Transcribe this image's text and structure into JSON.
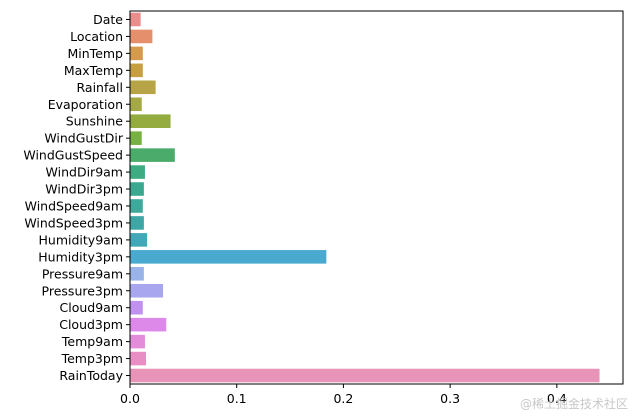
{
  "chart_data": {
    "type": "bar",
    "orientation": "horizontal",
    "categories": [
      "Date",
      "Location",
      "MinTemp",
      "MaxTemp",
      "Rainfall",
      "Evaporation",
      "Sunshine",
      "WindGustDir",
      "WindGustSpeed",
      "WindDir9am",
      "WindDir3pm",
      "WindSpeed9am",
      "WindSpeed3pm",
      "Humidity9am",
      "Humidity3pm",
      "Pressure9am",
      "Pressure3pm",
      "Cloud9am",
      "Cloud3pm",
      "Temp9am",
      "Temp3pm",
      "RainToday"
    ],
    "values": [
      0.01,
      0.021,
      0.012,
      0.012,
      0.024,
      0.011,
      0.038,
      0.011,
      0.042,
      0.014,
      0.013,
      0.012,
      0.013,
      0.016,
      0.184,
      0.013,
      0.031,
      0.012,
      0.034,
      0.014,
      0.015,
      0.44
    ],
    "colors": [
      "#ea8d8d",
      "#e58f6d",
      "#d69a4f",
      "#c89e43",
      "#b6a446",
      "#a5a945",
      "#93ac40",
      "#76b142",
      "#4aab6a",
      "#3fab82",
      "#3ca88f",
      "#3ea99b",
      "#3ea6a4",
      "#42a8b7",
      "#4aa9cf",
      "#9ab3e8",
      "#a8a6ef",
      "#c191ef",
      "#dc89e9",
      "#e28cda",
      "#e98dc5",
      "#e893b8"
    ],
    "xticks": [
      "0.0",
      "0.1",
      "0.2",
      "0.3",
      "0.4"
    ],
    "xtick_values": [
      0.0,
      0.1,
      0.2,
      0.3,
      0.4
    ],
    "xlim": [
      0.0,
      0.462
    ],
    "title": "",
    "xlabel": "",
    "ylabel": "",
    "grid": false
  },
  "watermark": "@稀土掘金技术社区"
}
